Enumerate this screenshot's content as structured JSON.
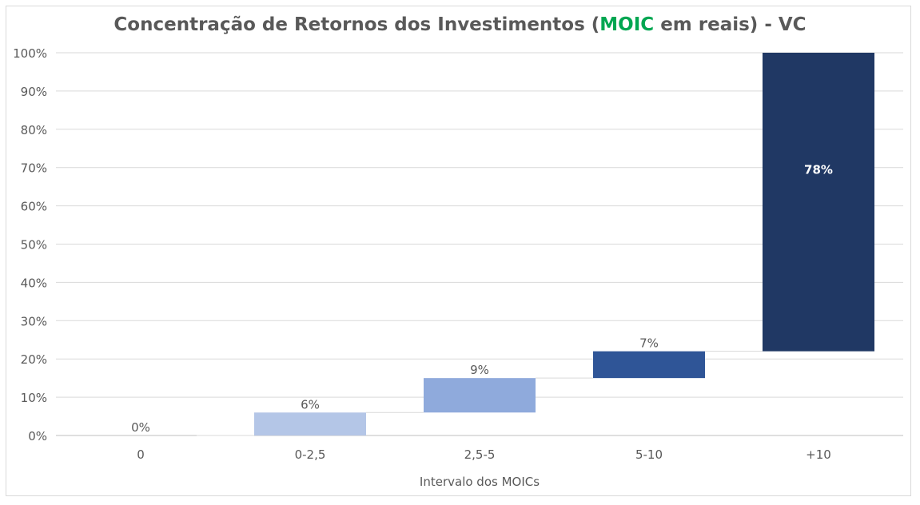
{
  "chart_data": {
    "type": "bar",
    "subtype": "waterfall",
    "title": {
      "prefix": "Concentração de Retornos dos Investimentos (",
      "highlight": "MOIC",
      "suffix": " em reais) - VC"
    },
    "xlabel": "Intervalo dos MOICs",
    "ylabel": "",
    "ylim": [
      0,
      100
    ],
    "yticks": [
      "0%",
      "10%",
      "20%",
      "30%",
      "40%",
      "50%",
      "60%",
      "70%",
      "80%",
      "90%",
      "100%"
    ],
    "categories": [
      "0",
      "0-2,5",
      "2,5-5",
      "5-10",
      "+10"
    ],
    "values": [
      0,
      6,
      9,
      7,
      78
    ],
    "data_labels": [
      "0%",
      "6%",
      "9%",
      "7%",
      "78%"
    ],
    "colors": [
      "#b4c6e7",
      "#b4c6e7",
      "#8faadc",
      "#2f5597",
      "#203864"
    ],
    "highlight_color": "#00a651",
    "grid": true
  }
}
